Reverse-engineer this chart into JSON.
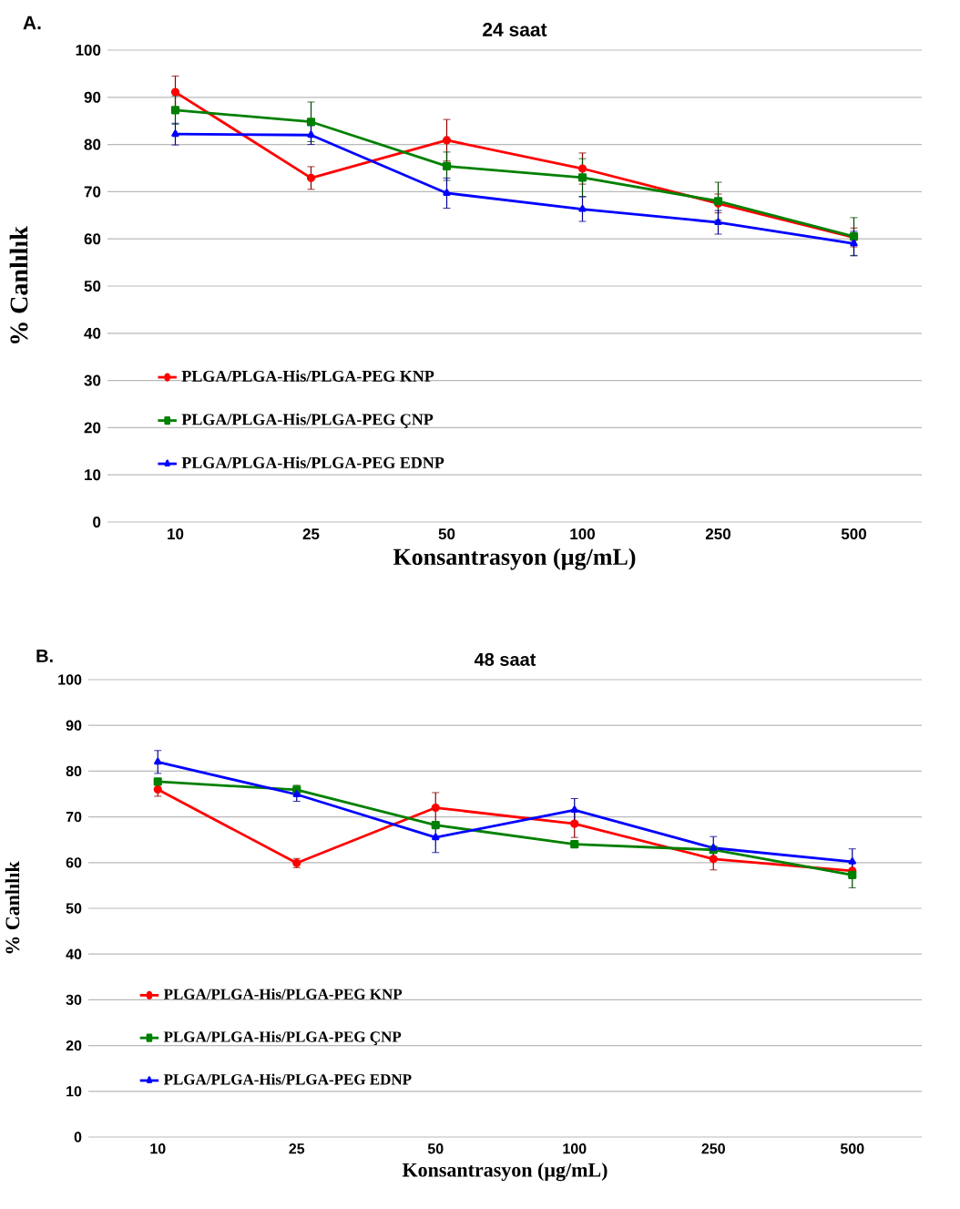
{
  "chart_data": [
    {
      "type": "line",
      "title": "24 saat",
      "xlabel": "Konsantrasyon (µg/mL)",
      "ylabel": "% Canlılık",
      "annotations": [
        "A."
      ],
      "categories": [
        "10",
        "25",
        "50",
        "100",
        "250",
        "500"
      ],
      "ylim": [
        0,
        100
      ],
      "yticks": [
        0,
        10,
        20,
        30,
        40,
        50,
        60,
        70,
        80,
        90,
        100
      ],
      "grid": "y",
      "legend": "bottom left",
      "series": [
        {
          "name": "PLGA/PLGA-His/PLGA-PEG KNP",
          "color": "#ff0000",
          "marker": "circle",
          "values": [
            91.1,
            72.9,
            80.9,
            74.9,
            67.5,
            60.3
          ],
          "errors": [
            3.4,
            2.4,
            4.4,
            3.3,
            2.0,
            2.0
          ]
        },
        {
          "name": "PLGA/PLGA-His/PLGA-PEG ÇNP",
          "color": "#008000",
          "marker": "square",
          "values": [
            87.3,
            84.8,
            75.4,
            73.0,
            68.0,
            60.5
          ],
          "errors": [
            3.0,
            4.2,
            3.0,
            4.0,
            4.0,
            4.0
          ]
        },
        {
          "name": "PLGA/PLGA-His/PLGA-PEG EDNP",
          "color": "#0000ff",
          "marker": "triangle",
          "values": [
            82.2,
            82.0,
            69.7,
            66.3,
            63.5,
            59.0
          ],
          "errors": [
            2.3,
            2.0,
            3.2,
            2.6,
            2.5,
            2.6
          ]
        }
      ]
    },
    {
      "type": "line",
      "title": "48 saat",
      "xlabel": "Konsantrasyon (µg/mL)",
      "ylabel": "% Canlılık",
      "annotations": [
        "B."
      ],
      "categories": [
        "10",
        "25",
        "50",
        "100",
        "250",
        "500"
      ],
      "ylim": [
        0,
        100
      ],
      "yticks": [
        0,
        10,
        20,
        30,
        40,
        50,
        60,
        70,
        80,
        90,
        100
      ],
      "grid": "y",
      "legend": "bottom left",
      "series": [
        {
          "name": "PLGA/PLGA-His/PLGA-PEG KNP",
          "color": "#ff0000",
          "marker": "circle",
          "values": [
            76.0,
            59.9,
            72.0,
            68.5,
            60.8,
            58.2
          ],
          "errors": [
            1.5,
            1.0,
            3.3,
            3.0,
            2.4,
            null
          ]
        },
        {
          "name": "PLGA/PLGA-His/PLGA-PEG ÇNP",
          "color": "#008000",
          "marker": "square",
          "values": [
            77.7,
            75.9,
            68.2,
            64.0,
            62.8,
            57.3
          ],
          "errors": [
            null,
            1.0,
            null,
            null,
            null,
            2.8
          ]
        },
        {
          "name": "PLGA/PLGA-His/PLGA-PEG EDNP",
          "color": "#0000ff",
          "marker": "triangle",
          "values": [
            82.0,
            74.9,
            65.5,
            71.5,
            63.2,
            60.2
          ],
          "errors": [
            2.5,
            1.5,
            3.3,
            2.5,
            2.5,
            2.8
          ]
        }
      ]
    }
  ]
}
